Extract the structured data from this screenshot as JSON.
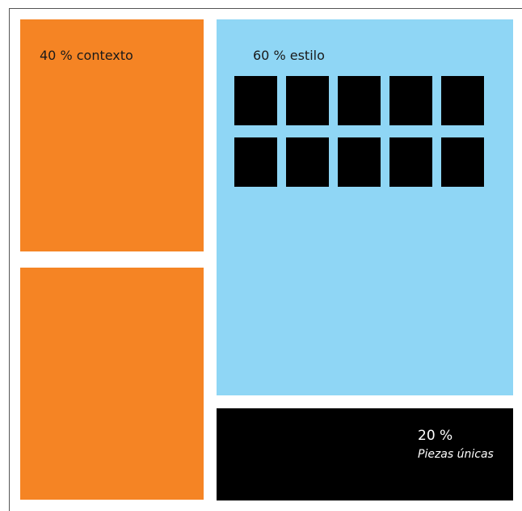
{
  "colors": {
    "context": "#f58424",
    "style": "#8fd6f5",
    "unique": "#000000",
    "squares": "#000000"
  },
  "context": {
    "label": "40 % contexto"
  },
  "style": {
    "label": "60 % estilo",
    "items_count": 10
  },
  "unique": {
    "percent": "20 %",
    "caption": "Piezas únicas"
  }
}
